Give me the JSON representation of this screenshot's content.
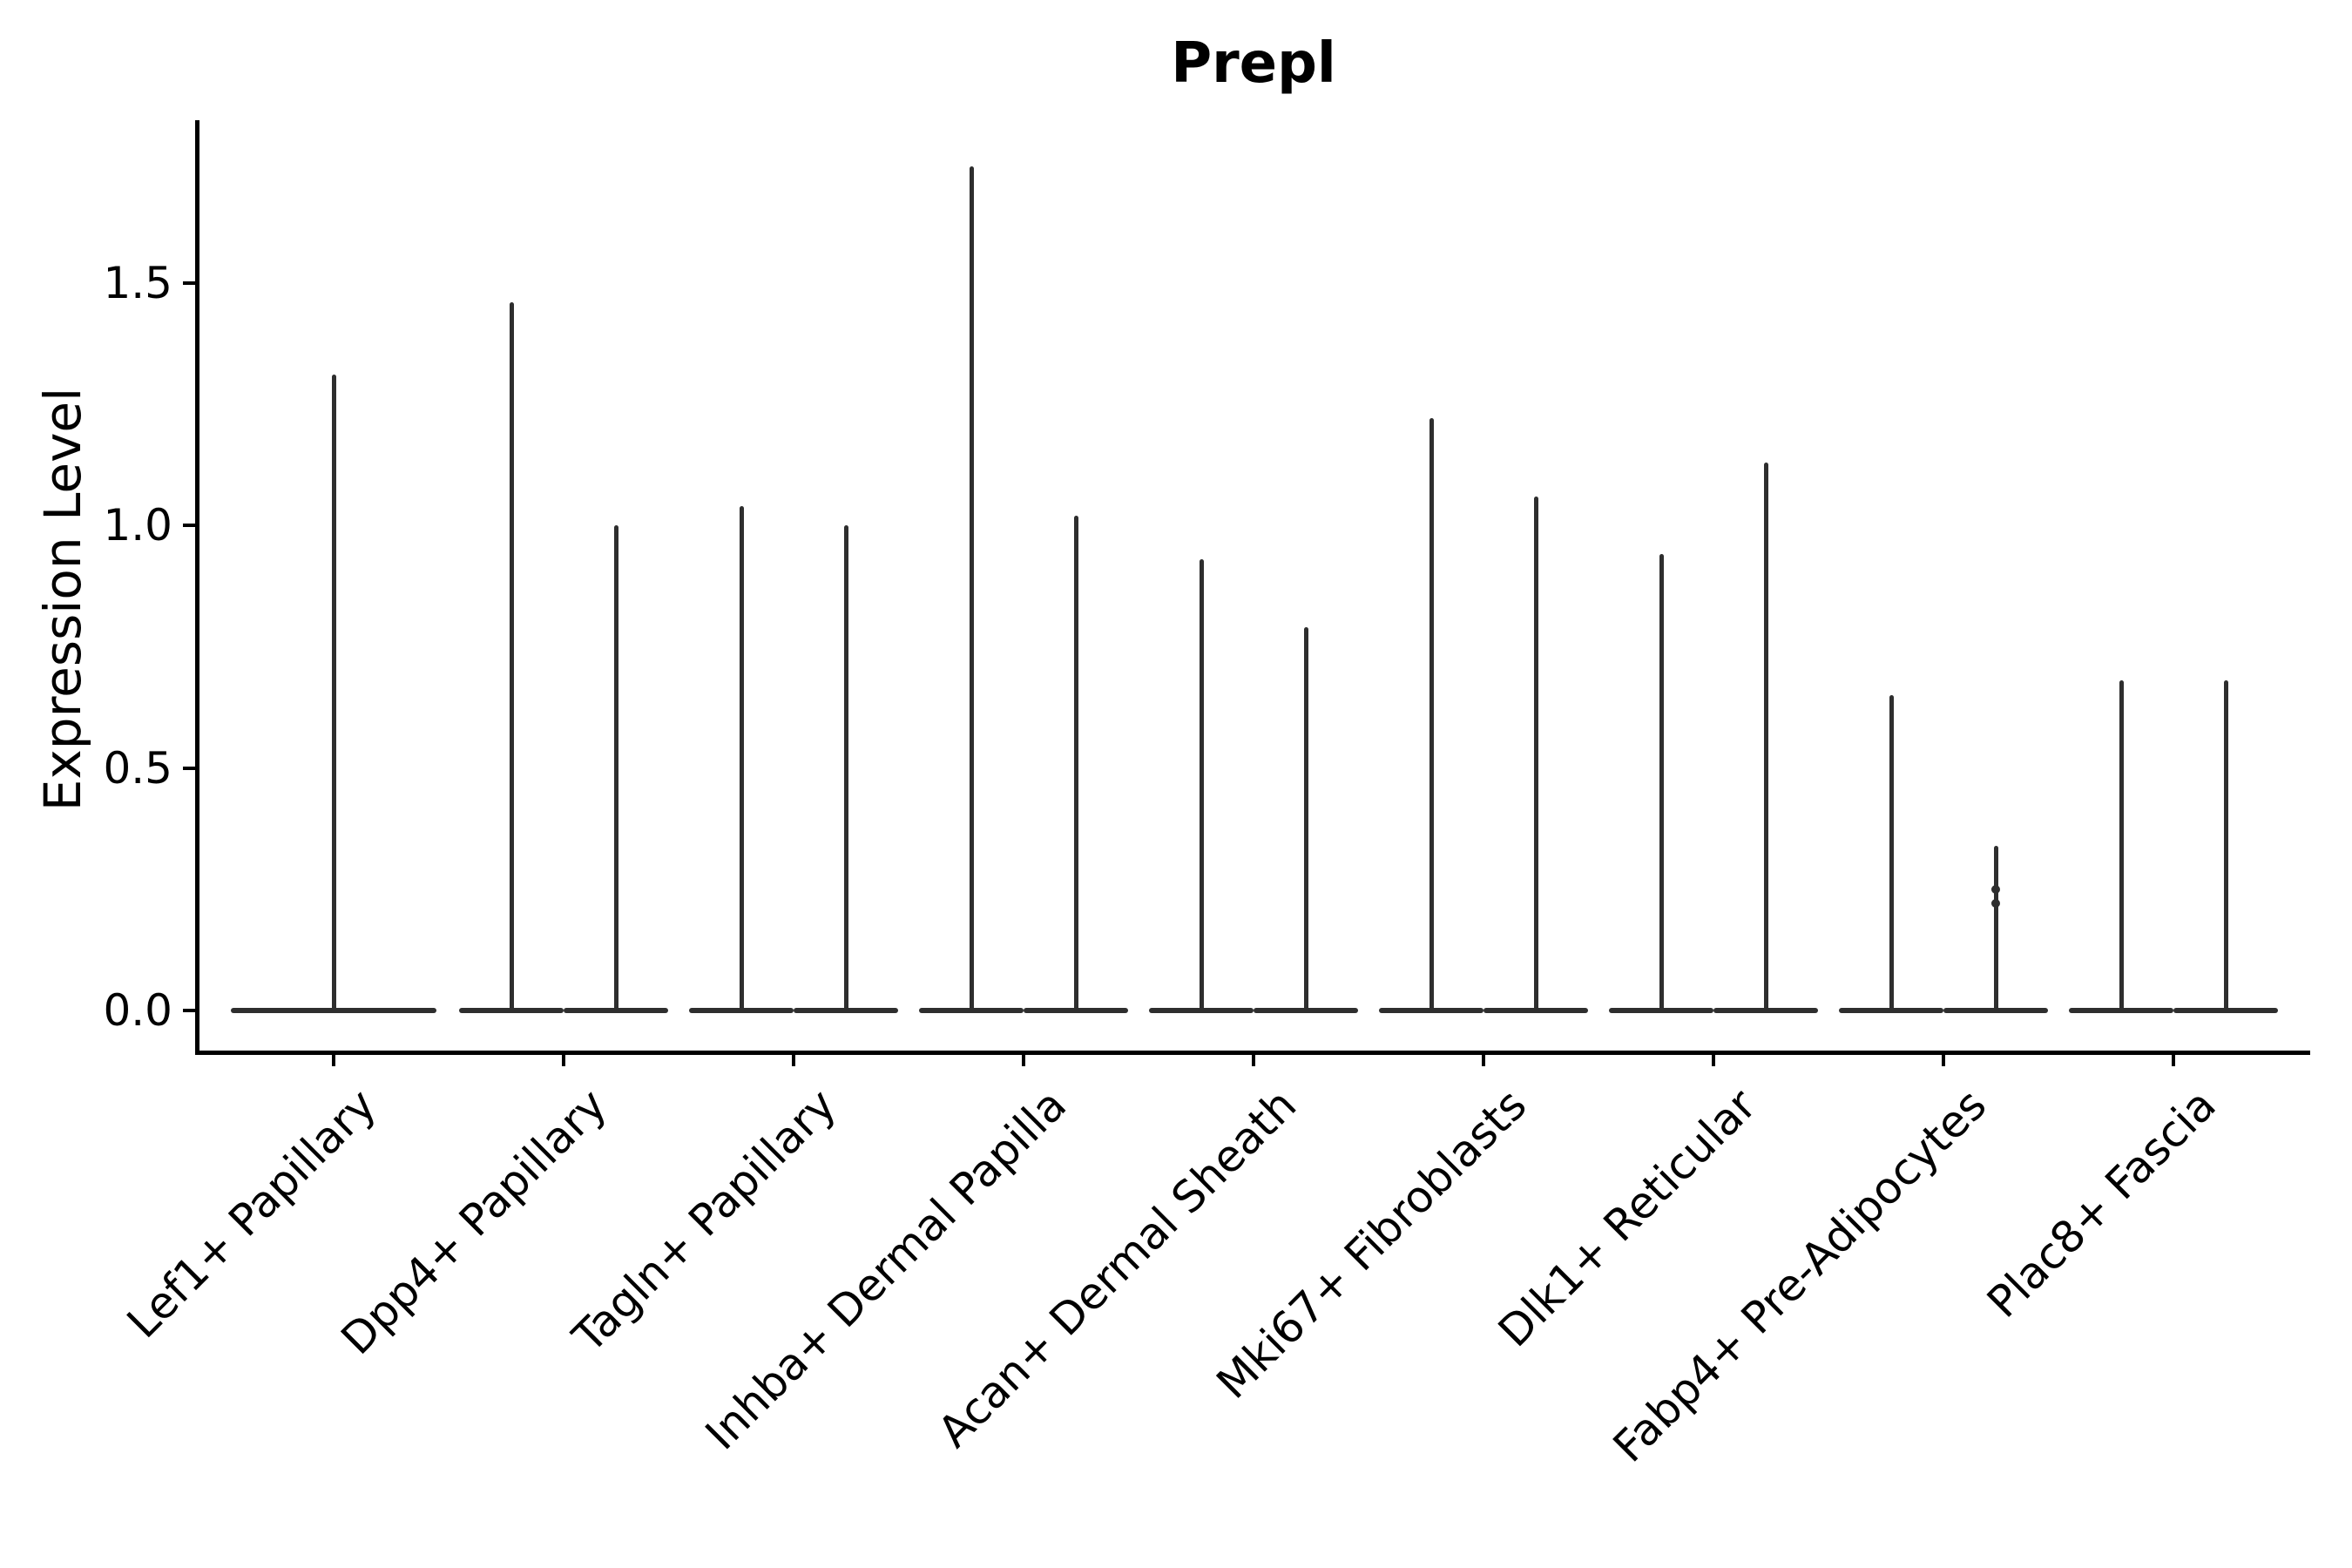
{
  "title": "Prepl",
  "axes": {
    "ylabel": "Expression Level",
    "ytick_labels": [
      "0.0",
      "0.5",
      "1.0",
      "1.5"
    ]
  },
  "colors": {
    "violin": "#2e2e2e",
    "axis": "#000000",
    "text": "#000000",
    "background": "#ffffff"
  },
  "chart_data": {
    "type": "violin",
    "title": "Prepl",
    "xlabel": "",
    "ylabel": "Expression Level",
    "yticks": [
      0.0,
      0.5,
      1.0,
      1.5
    ],
    "ylim": [
      -0.09,
      1.84
    ],
    "grid": false,
    "legend": "none",
    "shape_note": "Each violin is needle-shaped: a wide flat base at expression 0 (bulk of cells at zero) with a thin vertical spike reaching the maximum expression value; categories 2-9 contain two violins side by side, category 1 has a single centered violin",
    "categories": [
      "Lef1+ Papillary",
      "Dpp4+ Papillary",
      "Tagln+ Papillary",
      "Inhba+ Dermal Papilla",
      "Acan+ Dermal Sheath",
      "Mki67+ Fibroblasts",
      "Dlk1+ Reticular",
      "Fabp4+ Pre-Adipocytes",
      "Plac8+ Fascia"
    ],
    "violins": [
      {
        "category": "Lef1+ Papillary",
        "baseline_value": 0.0,
        "max_values": [
          1.31
        ]
      },
      {
        "category": "Dpp4+ Papillary",
        "baseline_value": 0.0,
        "max_values": [
          1.46,
          1.0
        ]
      },
      {
        "category": "Tagln+ Papillary",
        "baseline_value": 0.0,
        "max_values": [
          1.04,
          1.0
        ]
      },
      {
        "category": "Inhba+ Dermal Papilla",
        "baseline_value": 0.0,
        "max_values": [
          1.74,
          1.02
        ]
      },
      {
        "category": "Acan+ Dermal Sheath",
        "baseline_value": 0.0,
        "max_values": [
          0.93,
          0.79
        ]
      },
      {
        "category": "Mki67+ Fibroblasts",
        "baseline_value": 0.0,
        "max_values": [
          1.22,
          1.06
        ]
      },
      {
        "category": "Dlk1+ Reticular",
        "baseline_value": 0.0,
        "max_values": [
          0.94,
          1.13
        ]
      },
      {
        "category": "Fabp4+ Pre-Adipocytes",
        "baseline_value": 0.0,
        "max_values": [
          0.65,
          0.34
        ]
      },
      {
        "category": "Plac8+ Fascia",
        "baseline_value": 0.0,
        "max_values": [
          0.68,
          0.68
        ]
      }
    ],
    "extra_points": [
      {
        "category": "Fabp4+ Pre-Adipocytes",
        "violin_index": 1,
        "values": [
          0.25,
          0.22
        ]
      }
    ]
  }
}
